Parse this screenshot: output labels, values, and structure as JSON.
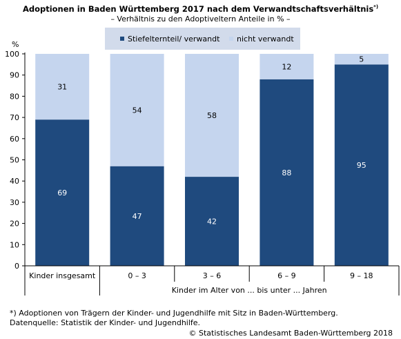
{
  "title": "Adoptionen in Baden Württemberg 2017 nach dem Verwandtschaftsverhältnis",
  "title_sup": "*)",
  "subtitle": "– Verhältnis zu den Adoptiveltern Anteile in % –",
  "unit_label": "%",
  "legend": [
    {
      "label": "Stiefelternteil/ verwandt",
      "color": "#1f4a7e"
    },
    {
      "label": "nicht verwandt",
      "color": "#c5d5ee"
    }
  ],
  "x_group_label": "Kinder im Alter von ... bis unter ... Jahren",
  "footnotes": [
    "*) Adoptionen von Trägern der Kinder- und Jugendhilfe mit Sitz in Baden-Württemberg.",
    "Datenquelle: Statistik der Kinder- und Jugendhilfe."
  ],
  "copyright": "© Statistisches Landesamt Baden-Württemberg 2018",
  "chart_data": {
    "type": "bar",
    "stacked": true,
    "categories": [
      "Kinder insgesamt",
      "0 – 3",
      "3 – 6",
      "6 – 9",
      "9  – 18"
    ],
    "series": [
      {
        "name": "Stiefelternteil/ verwandt",
        "values": [
          69,
          47,
          42,
          88,
          95
        ],
        "color": "#1f4a7e",
        "label_color": "#ffffff"
      },
      {
        "name": "nicht verwandt",
        "values": [
          31,
          54,
          58,
          12,
          5
        ],
        "color": "#c5d5ee",
        "label_color": "#000000"
      }
    ],
    "ylim": [
      0,
      100
    ],
    "yticks": [
      0,
      10,
      20,
      30,
      40,
      50,
      60,
      70,
      80,
      90,
      100
    ],
    "ylabel": "%",
    "grid": false
  }
}
